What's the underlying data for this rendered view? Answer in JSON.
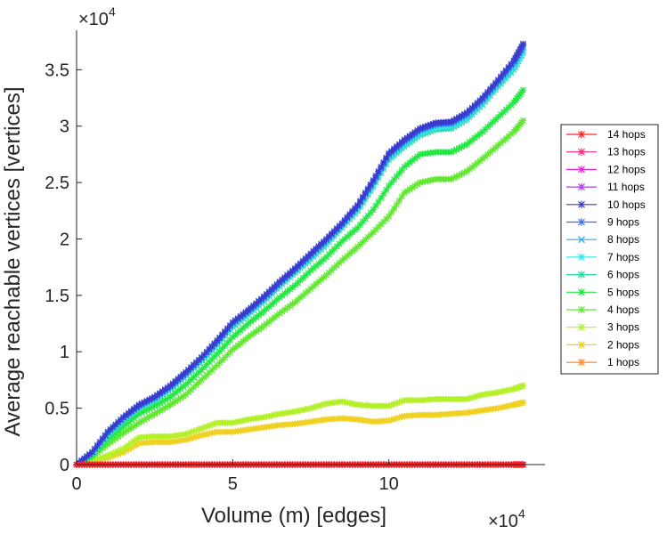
{
  "chart_data": {
    "type": "line",
    "title": "",
    "xlabel": "Volume (m) [edges]",
    "ylabel": "Average reachable vertices [vertices]",
    "x_multiplier_base": "×10",
    "x_multiplier_exp": "4",
    "y_multiplier_base": "×10",
    "y_multiplier_exp": "4",
    "xlim": [
      0,
      15
    ],
    "ylim": [
      0,
      3.85
    ],
    "xticks": [
      0,
      5,
      10
    ],
    "xtick_labels": [
      "0",
      "5",
      "10"
    ],
    "yticks": [
      0,
      0.5,
      1,
      1.5,
      2,
      2.5,
      3,
      3.5
    ],
    "ytick_labels": [
      "0",
      "0.5",
      "1",
      "1.5",
      "2",
      "2.5",
      "3",
      "3.5"
    ],
    "grid": false,
    "legend_position": "right",
    "x": [
      0,
      0.5,
      1,
      1.5,
      2,
      2.5,
      3,
      3.5,
      4,
      4.5,
      5,
      5.5,
      6,
      6.5,
      7,
      7.5,
      8,
      8.5,
      9,
      9.5,
      10,
      10.5,
      11,
      11.5,
      12,
      12.5,
      13,
      13.5,
      14,
      14.3
    ],
    "series": [
      {
        "name": "14 hops",
        "color": "#ff2020",
        "marker": "*",
        "values": [
          0.0,
          0.0,
          0.0,
          0.0,
          0.0,
          0.0,
          0.0,
          0.0,
          0.0,
          0.0,
          0.0,
          0.0,
          0.0,
          0.0,
          0.0,
          0.0,
          0.0,
          0.0,
          0.0,
          0.0,
          0.0,
          0.0,
          0.0,
          0.0,
          0.0,
          0.0,
          0.0,
          0.0,
          0.0,
          0.0
        ]
      },
      {
        "name": "13 hops",
        "color": "#ff2a80",
        "marker": "*",
        "values": [
          0.0,
          0.0,
          0.0,
          0.0,
          0.0,
          0.0,
          0.0,
          0.0,
          0.0,
          0.0,
          0.0,
          0.0,
          0.0,
          0.0,
          0.0,
          0.0,
          0.0,
          0.0,
          0.0,
          0.0,
          0.0,
          0.0,
          0.0,
          0.0,
          0.0,
          0.0,
          0.0,
          0.0,
          0.0,
          0.0
        ]
      },
      {
        "name": "12 hops",
        "color": "#ee22dd",
        "marker": "*",
        "values": [
          0.0,
          0.0,
          0.0,
          0.0,
          0.0,
          0.0,
          0.0,
          0.0,
          0.0,
          0.0,
          0.0,
          0.0,
          0.0,
          0.0,
          0.0,
          0.0,
          0.0,
          0.0,
          0.0,
          0.0,
          0.0,
          0.0,
          0.0,
          0.0,
          0.0,
          0.0,
          0.0,
          0.0,
          0.0,
          0.0
        ]
      },
      {
        "name": "11 hops",
        "color": "#a040f0",
        "marker": "*",
        "values": [
          0.0,
          0.0,
          0.0,
          0.0,
          0.0,
          0.0,
          0.0,
          0.0,
          0.0,
          0.0,
          0.0,
          0.0,
          0.0,
          0.0,
          0.0,
          0.0,
          0.0,
          0.0,
          0.0,
          0.0,
          0.0,
          0.0,
          0.0,
          0.0,
          0.0,
          0.0,
          0.0,
          0.0,
          0.0,
          0.0
        ]
      },
      {
        "name": "10 hops",
        "color": "#3a3acc",
        "marker": "*",
        "values": [
          0.0,
          0.11,
          0.29,
          0.42,
          0.53,
          0.6,
          0.7,
          0.82,
          0.95,
          1.1,
          1.26,
          1.37,
          1.49,
          1.62,
          1.74,
          1.87,
          2.0,
          2.14,
          2.3,
          2.52,
          2.76,
          2.88,
          2.98,
          3.03,
          3.04,
          3.12,
          3.25,
          3.41,
          3.58,
          3.73
        ]
      },
      {
        "name": "9 hops",
        "color": "#3a6ef0",
        "marker": "*",
        "values": [
          0.0,
          0.11,
          0.29,
          0.42,
          0.52,
          0.6,
          0.69,
          0.81,
          0.95,
          1.09,
          1.26,
          1.36,
          1.48,
          1.61,
          1.73,
          1.86,
          1.99,
          2.13,
          2.29,
          2.51,
          2.75,
          2.87,
          2.97,
          3.02,
          3.03,
          3.11,
          3.24,
          3.4,
          3.57,
          3.72
        ]
      },
      {
        "name": "8 hops",
        "color": "#30a8f0",
        "marker": "x",
        "values": [
          0.0,
          0.11,
          0.28,
          0.41,
          0.52,
          0.59,
          0.69,
          0.81,
          0.94,
          1.09,
          1.25,
          1.36,
          1.48,
          1.61,
          1.73,
          1.86,
          1.99,
          2.13,
          2.29,
          2.5,
          2.74,
          2.86,
          2.96,
          3.01,
          3.02,
          3.1,
          3.23,
          3.39,
          3.55,
          3.7
        ]
      },
      {
        "name": "7 hops",
        "color": "#30e8f0",
        "marker": "*",
        "values": [
          0.0,
          0.1,
          0.27,
          0.4,
          0.51,
          0.58,
          0.68,
          0.8,
          0.93,
          1.08,
          1.24,
          1.35,
          1.46,
          1.6,
          1.72,
          1.84,
          1.97,
          2.12,
          2.27,
          2.48,
          2.72,
          2.84,
          2.94,
          2.99,
          3.0,
          3.08,
          3.21,
          3.37,
          3.52,
          3.67
        ]
      },
      {
        "name": "6 hops",
        "color": "#28d8a0",
        "marker": "*",
        "values": [
          0.0,
          0.1,
          0.26,
          0.39,
          0.5,
          0.57,
          0.67,
          0.79,
          0.92,
          1.06,
          1.22,
          1.33,
          1.45,
          1.58,
          1.7,
          1.82,
          1.95,
          2.1,
          2.25,
          2.46,
          2.7,
          2.82,
          2.92,
          2.97,
          2.98,
          3.06,
          3.19,
          3.35,
          3.5,
          3.65
        ]
      },
      {
        "name": "5 hops",
        "color": "#20e840",
        "marker": "*",
        "values": [
          0.0,
          0.08,
          0.22,
          0.34,
          0.45,
          0.52,
          0.6,
          0.71,
          0.84,
          0.98,
          1.13,
          1.25,
          1.36,
          1.48,
          1.59,
          1.72,
          1.84,
          1.98,
          2.1,
          2.26,
          2.47,
          2.64,
          2.75,
          2.77,
          2.77,
          2.84,
          2.95,
          3.08,
          3.21,
          3.32
        ]
      },
      {
        "name": "4 hops",
        "color": "#60e830",
        "marker": "*",
        "values": [
          0.0,
          0.07,
          0.18,
          0.28,
          0.37,
          0.45,
          0.53,
          0.62,
          0.75,
          0.88,
          1.02,
          1.13,
          1.23,
          1.34,
          1.44,
          1.56,
          1.68,
          1.81,
          1.93,
          2.06,
          2.2,
          2.41,
          2.5,
          2.53,
          2.53,
          2.6,
          2.71,
          2.83,
          2.95,
          3.05
        ]
      },
      {
        "name": "3 hops",
        "color": "#b4f028",
        "marker": "*",
        "values": [
          0.0,
          0.03,
          0.08,
          0.14,
          0.24,
          0.25,
          0.25,
          0.27,
          0.32,
          0.37,
          0.37,
          0.4,
          0.42,
          0.45,
          0.47,
          0.5,
          0.54,
          0.56,
          0.53,
          0.52,
          0.52,
          0.57,
          0.57,
          0.58,
          0.58,
          0.58,
          0.62,
          0.64,
          0.67,
          0.7
        ]
      },
      {
        "name": "2 hops",
        "color": "#f0d020",
        "marker": "*",
        "values": [
          0.0,
          0.02,
          0.06,
          0.11,
          0.19,
          0.2,
          0.2,
          0.22,
          0.26,
          0.29,
          0.29,
          0.31,
          0.33,
          0.35,
          0.36,
          0.38,
          0.4,
          0.41,
          0.4,
          0.38,
          0.39,
          0.43,
          0.44,
          0.44,
          0.45,
          0.46,
          0.48,
          0.5,
          0.53,
          0.55
        ]
      },
      {
        "name": "1 hops",
        "color": "#ff8820",
        "marker": "*",
        "values": [
          0.0,
          0.0,
          0.0,
          0.0,
          0.0,
          0.0,
          0.0,
          0.0,
          0.0,
          0.0,
          0.0,
          0.0,
          0.0,
          0.0,
          0.0,
          0.0,
          0.0,
          0.0,
          0.0,
          0.0,
          0.0,
          0.0,
          0.0,
          0.0,
          0.0,
          0.0,
          0.0,
          0.0,
          0.0,
          0.0
        ]
      }
    ]
  }
}
